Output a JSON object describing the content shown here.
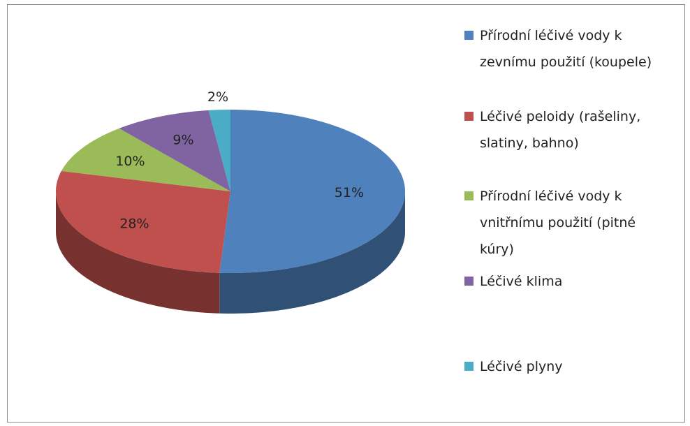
{
  "chart_data": {
    "type": "pie",
    "categories": [
      "Přírodní léčivé vody k zevnímu použití (koupele)",
      "Léčivé peloidy (rašeliny, slatiny, bahno)",
      "Přírodní léčivé vody k vnitřnímu použití (pitné kúry)",
      "Léčivé klima",
      "Léčivé plyny"
    ],
    "values": [
      51,
      28,
      10,
      9,
      2
    ],
    "value_labels": [
      "51%",
      "28%",
      "10%",
      "9%",
      "2%"
    ],
    "colors": [
      "#4f81bd",
      "#c0504d",
      "#9bbb59",
      "#8064a2",
      "#4bacc6"
    ],
    "legend": "right"
  }
}
